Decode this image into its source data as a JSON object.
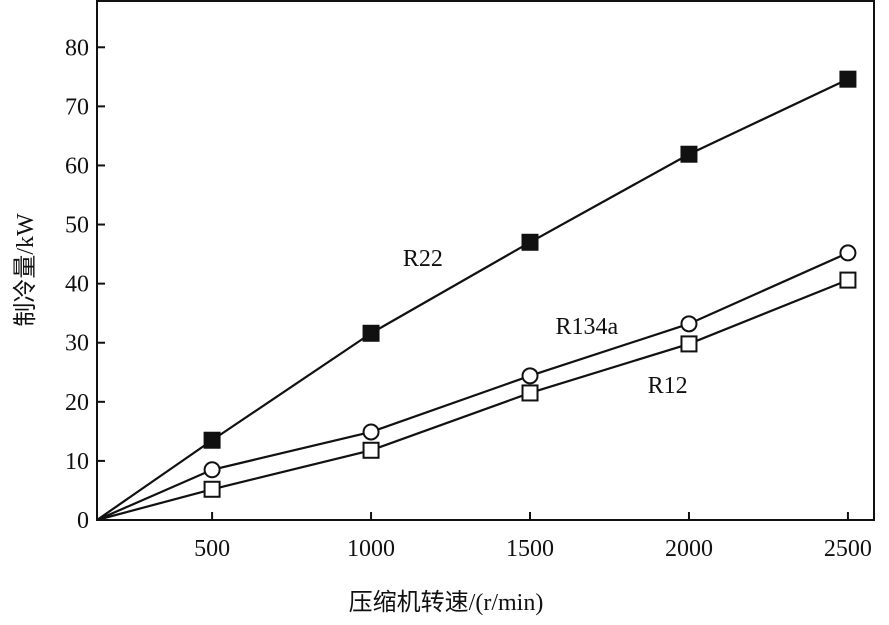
{
  "chart_data": {
    "type": "line",
    "title": "",
    "xlabel": "压缩机转速/(r/min)",
    "ylabel": "制冷量/kW",
    "xlim": [
      138,
      2582
    ],
    "ylim": [
      0,
      88
    ],
    "xticks": [
      500,
      1000,
      1500,
      2000,
      2500
    ],
    "yticks": [
      0,
      10,
      20,
      30,
      40,
      50,
      60,
      70,
      80
    ],
    "grid": false,
    "legend": "inline labels",
    "x": [
      500,
      1000,
      1500,
      2000,
      2500
    ],
    "origin_point": [
      138,
      0
    ],
    "series": [
      {
        "name": "R22",
        "marker": "filled-square",
        "values": [
          13.5,
          31.6,
          47.0,
          61.9,
          74.6
        ],
        "label_at": [
          1100,
          43
        ]
      },
      {
        "name": "R134a",
        "marker": "open-circle",
        "values": [
          8.5,
          14.9,
          24.4,
          33.2,
          45.2
        ],
        "label_at": [
          1580,
          31.5
        ]
      },
      {
        "name": "R12",
        "marker": "open-square",
        "values": [
          5.2,
          11.8,
          21.5,
          29.8,
          40.6
        ],
        "label_at": [
          1870,
          21.5
        ]
      }
    ]
  }
}
